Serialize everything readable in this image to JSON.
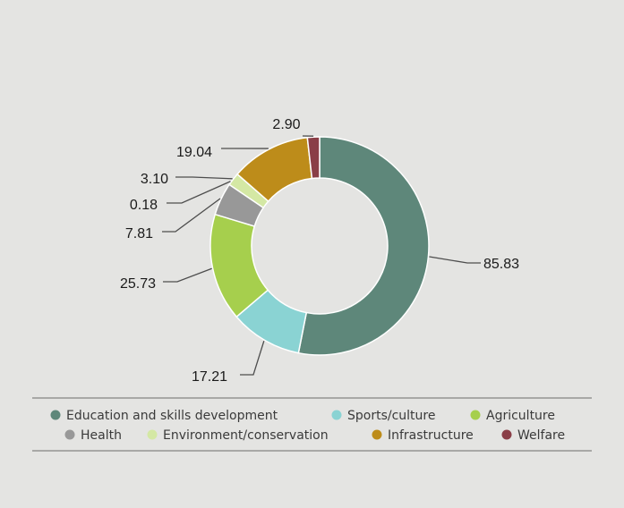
{
  "chart_data": {
    "type": "pie",
    "variant": "donut",
    "series": [
      {
        "name": "Education and skills development",
        "value": 85.83,
        "label": "85.83",
        "color": "#5e877a"
      },
      {
        "name": "Sports/culture",
        "value": 17.21,
        "label": "17.21",
        "color": "#8ad3d3"
      },
      {
        "name": "Agriculture",
        "value": 25.73,
        "label": "25.73",
        "color": "#a6cf4d"
      },
      {
        "name": "Health",
        "value": 7.81,
        "label": "7.81",
        "color": "#989898"
      },
      {
        "name": "Environment/conservation",
        "value": 3.1,
        "label": "3.10",
        "color": "#d4e8a4"
      },
      {
        "name": "Infrastructure",
        "value": 19.04,
        "label": "19.04",
        "color": "#bd8c1a"
      },
      {
        "name": "Welfare",
        "value": 2.9,
        "label": "2.90",
        "color": "#8a3e47"
      }
    ],
    "extra_labels": [
      "0.18"
    ],
    "legend_position": "bottom",
    "grid": false
  }
}
